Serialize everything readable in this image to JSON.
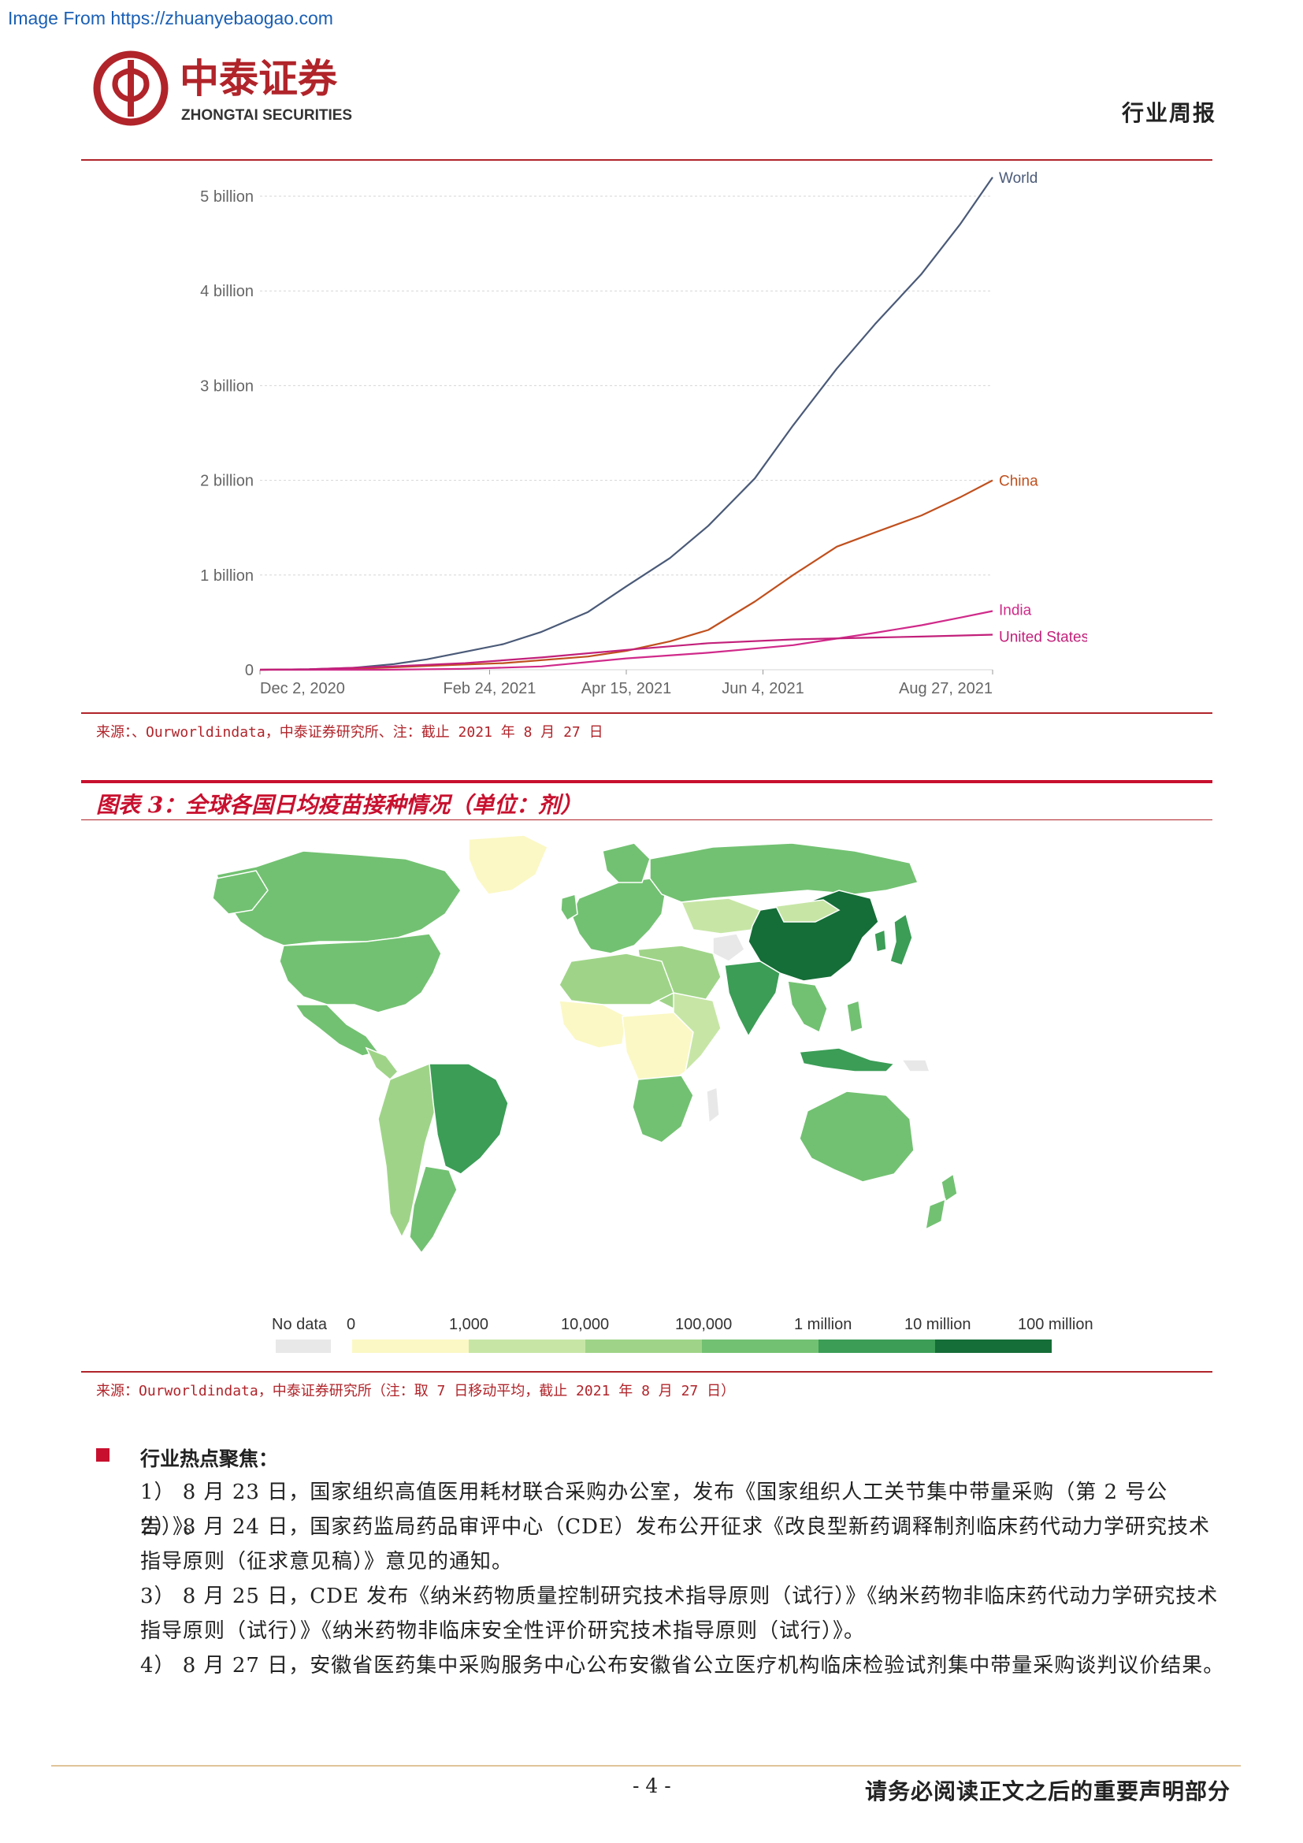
{
  "watermark": "Image From https://zhuanyebaogao.com",
  "header": {
    "company_cn": "中泰证券",
    "company_en": "ZHONGTAI SECURITIES",
    "report_type": "行业周报",
    "brand_color": "#c8102e"
  },
  "chart_data": {
    "type": "line",
    "x_ticks": [
      "Dec 2, 2020",
      "Feb 24, 2021",
      "Apr 15, 2021",
      "Jun 4, 2021",
      "Aug 27, 2021"
    ],
    "y_ticks": [
      "0",
      "1 billion",
      "2 billion",
      "3 billion",
      "4 billion",
      "5 billion"
    ],
    "x_range": [
      "2020-12-02",
      "2021-08-27"
    ],
    "ylim": [
      0,
      5200000000
    ],
    "grid": "horizontal dashed",
    "series": [
      {
        "name": "World",
        "color": "#4a5a78",
        "dates": [
          "2020-12-02",
          "2020-12-20",
          "2021-01-05",
          "2021-01-20",
          "2021-02-01",
          "2021-02-15",
          "2021-03-01",
          "2021-03-15",
          "2021-04-01",
          "2021-04-15",
          "2021-05-01",
          "2021-05-15",
          "2021-06-01",
          "2021-06-15",
          "2021-07-01",
          "2021-07-15",
          "2021-08-01",
          "2021-08-15",
          "2021-08-27"
        ],
        "values": [
          0,
          5000000,
          20000000,
          60000000,
          110000000,
          190000000,
          270000000,
          400000000,
          610000000,
          880000000,
          1180000000,
          1520000000,
          2020000000,
          2580000000,
          3180000000,
          3650000000,
          4180000000,
          4700000000,
          5200000000
        ]
      },
      {
        "name": "China",
        "color": "#c0501e",
        "dates": [
          "2020-12-02",
          "2021-01-01",
          "2021-02-01",
          "2021-03-01",
          "2021-04-01",
          "2021-04-15",
          "2021-05-01",
          "2021-05-15",
          "2021-06-01",
          "2021-06-15",
          "2021-07-01",
          "2021-07-15",
          "2021-08-01",
          "2021-08-15",
          "2021-08-27"
        ],
        "values": [
          0,
          5000000,
          40000000,
          70000000,
          140000000,
          200000000,
          300000000,
          420000000,
          720000000,
          1000000000,
          1300000000,
          1450000000,
          1630000000,
          1820000000,
          2000000000
        ]
      },
      {
        "name": "India",
        "color": "#d02a8a",
        "dates": [
          "2020-12-02",
          "2021-01-16",
          "2021-02-15",
          "2021-03-15",
          "2021-04-15",
          "2021-05-15",
          "2021-06-15",
          "2021-07-15",
          "2021-08-01",
          "2021-08-15",
          "2021-08-27"
        ],
        "values": [
          0,
          0,
          10000000,
          35000000,
          120000000,
          180000000,
          260000000,
          390000000,
          470000000,
          550000000,
          620000000
        ]
      },
      {
        "name": "United States",
        "color": "#c2207a",
        "dates": [
          "2020-12-02",
          "2020-12-20",
          "2021-01-15",
          "2021-02-15",
          "2021-03-15",
          "2021-04-15",
          "2021-05-15",
          "2021-06-15",
          "2021-07-15",
          "2021-08-01",
          "2021-08-27"
        ],
        "values": [
          0,
          5000000,
          30000000,
          70000000,
          130000000,
          210000000,
          280000000,
          320000000,
          340000000,
          350000000,
          370000000
        ]
      }
    ]
  },
  "fig2_source": "来源：、Ourworldindata，中泰证券研究所、注：截止 2021 年 8 月 27 日",
  "fig3": {
    "title": "图表 3：全球各国日均疫苗接种情况（单位：剂）",
    "legend": {
      "no_data_label": "No data",
      "no_data_color": "#e8e8e8",
      "ticks": [
        "0",
        "1,000",
        "10,000",
        "100,000",
        "1 million",
        "10 million",
        "100 million"
      ],
      "colors": [
        "#fbf8c5",
        "#c7e6a6",
        "#9fd488",
        "#72c172",
        "#3b9d56",
        "#156d37"
      ]
    },
    "source": "来源：Ourworldindata，中泰证券研究所（注：取 7 日移动平均，截止 2021 年 8 月 27 日）"
  },
  "hot_topics": {
    "heading": "行业热点聚焦：",
    "items": [
      "1） 8 月 23 日，国家组织高值医用耗材联合采购办公室，发布《国家组织人工关节集中带量采购（第 2 号公告）》。",
      "2） 8 月 24 日，国家药监局药品审评中心（CDE）发布公开征求《改良型新药调释制剂临床药代动力学研究技术指导原则（征求意见稿）》意见的通知。",
      "3） 8 月 25 日，CDE 发布《纳米药物质量控制研究技术指导原则（试行）》《纳米药物非临床药代动力学研究技术指导原则（试行）》《纳米药物非临床安全性评价研究技术指导原则（试行）》。",
      "4） 8 月 27 日，安徽省医药集中采购服务中心公布安徽省公立医疗机构临床检验试剂集中带量采购谈判议价结果。"
    ]
  },
  "footer": {
    "page_number": "- 4 -",
    "disclaimer": "请务必阅读正文之后的重要声明部分"
  }
}
